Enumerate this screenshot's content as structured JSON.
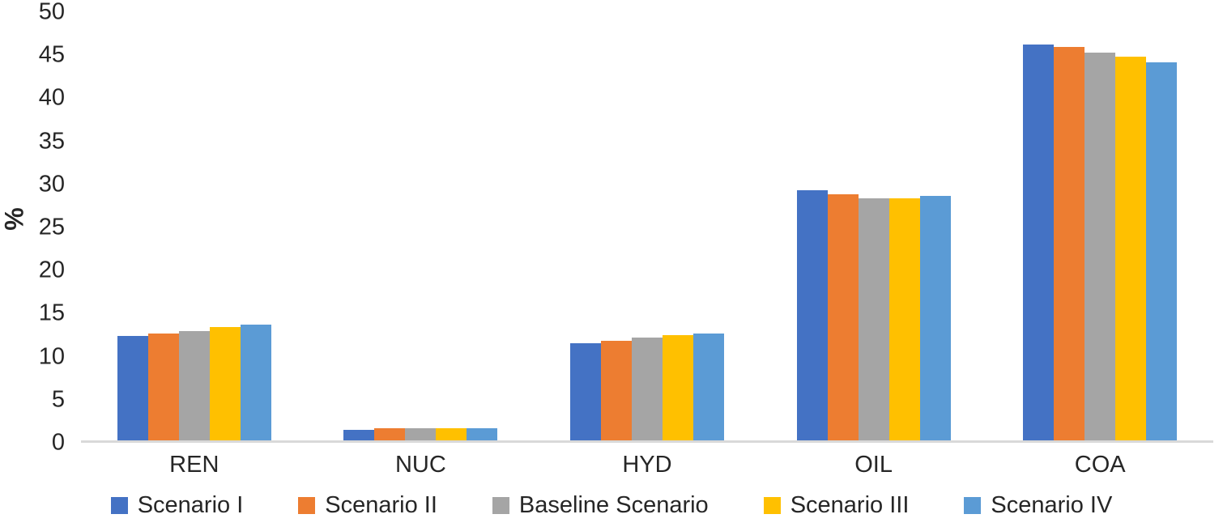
{
  "chart_data": {
    "type": "bar",
    "title": "",
    "xlabel": "",
    "ylabel": "%",
    "categories": [
      "REN",
      "NUC",
      "HYD",
      "OIL",
      "COA"
    ],
    "series": [
      {
        "name": "Scenario I",
        "color": "#4472C4",
        "values": [
          12.2,
          1.2,
          11.3,
          29.2,
          46.2
        ]
      },
      {
        "name": "Scenario II",
        "color": "#ED7D31",
        "values": [
          12.5,
          1.4,
          11.6,
          28.7,
          45.9
        ]
      },
      {
        "name": "Baseline Scenario",
        "color": "#A5A5A5",
        "values": [
          12.8,
          1.4,
          12.0,
          28.3,
          45.3
        ]
      },
      {
        "name": "Scenario III",
        "color": "#FFC000",
        "values": [
          13.2,
          1.4,
          12.3,
          28.3,
          44.8
        ]
      },
      {
        "name": "Scenario IV",
        "color": "#5B9BD5",
        "values": [
          13.5,
          1.4,
          12.5,
          28.5,
          44.1
        ]
      }
    ],
    "ylim": [
      0,
      50
    ],
    "yticks": [
      0,
      5,
      10,
      15,
      20,
      25,
      30,
      35,
      40,
      45,
      50
    ],
    "grid": false,
    "legend_position": "bottom",
    "axis_line_color": "#d9d9d9"
  }
}
